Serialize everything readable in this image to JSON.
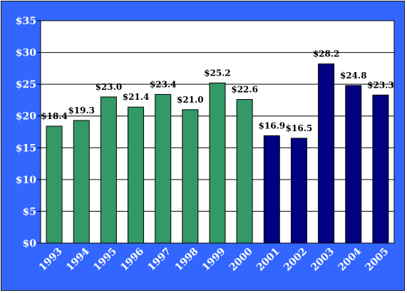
{
  "chart_data": {
    "type": "bar",
    "title": "",
    "xlabel": "",
    "ylabel": "",
    "categories": [
      "1993",
      "1994",
      "1995",
      "1996",
      "1997",
      "1998",
      "1999",
      "2000",
      "2001",
      "2002",
      "2003",
      "2004",
      "2005"
    ],
    "values": [
      18.4,
      19.3,
      23.0,
      21.4,
      23.4,
      21.0,
      25.2,
      22.6,
      16.9,
      16.5,
      28.2,
      24.8,
      23.3
    ],
    "data_labels": [
      "$18.4",
      "$19.3",
      "$23.0",
      "$21.4",
      "$23.4",
      "$21.0",
      "$25.2",
      "$22.6",
      "$16.9",
      "$16.5",
      "$28.2",
      "$24.8",
      "$23.3"
    ],
    "ylim": [
      0,
      35
    ],
    "yticks": [
      0,
      5,
      10,
      15,
      20,
      25,
      30,
      35
    ],
    "ytick_labels": [
      "$0",
      "$5",
      "$10",
      "$15",
      "$20",
      "$25",
      "$30",
      "$35"
    ],
    "bar_colors": [
      "#339966",
      "#339966",
      "#339966",
      "#339966",
      "#339966",
      "#339966",
      "#339966",
      "#339966",
      "#000080",
      "#000080",
      "#000080",
      "#000080",
      "#000080"
    ],
    "grid": true,
    "legend": "none",
    "colors": {
      "frame": "#3366ff",
      "plot_background": "#ffffff",
      "gridline": "#000000",
      "axis_text": "#ffffff",
      "data_label_text": "#000000"
    }
  }
}
